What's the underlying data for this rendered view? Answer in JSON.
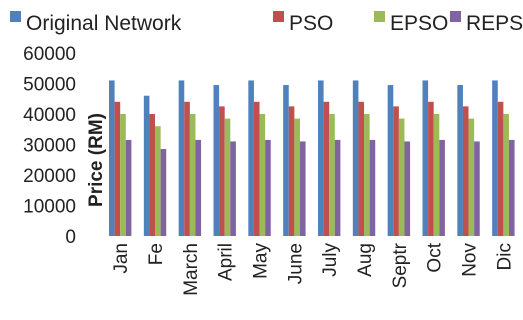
{
  "chart_data": {
    "type": "bar",
    "title": "",
    "xlabel": "",
    "ylabel": "Price (RM)",
    "ylim": [
      0,
      60000
    ],
    "yticks": [
      0,
      10000,
      20000,
      30000,
      40000,
      50000,
      60000
    ],
    "grid": false,
    "legend_position": "top",
    "categories": [
      "Jan",
      "Fe",
      "March",
      "April",
      "May",
      "June",
      "July",
      "Aug",
      "Septr",
      "Oct",
      "Nov",
      "Dic"
    ],
    "series": [
      {
        "name": "Original Network",
        "color": "#4F81BD",
        "values": [
          51000,
          46000,
          51000,
          49500,
          51000,
          49500,
          51000,
          51000,
          49500,
          51000,
          49500,
          51000
        ]
      },
      {
        "name": "PSO",
        "color": "#C0504D",
        "values": [
          44000,
          40000,
          44000,
          42500,
          44000,
          42500,
          44000,
          44000,
          42500,
          44000,
          42500,
          44000
        ]
      },
      {
        "name": "EPSO",
        "color": "#9BBB59",
        "values": [
          40000,
          36000,
          40000,
          38500,
          40000,
          38500,
          40000,
          40000,
          38500,
          40000,
          38500,
          40000
        ]
      },
      {
        "name": "REPSO",
        "color": "#8064A2",
        "values": [
          31500,
          28500,
          31500,
          31000,
          31500,
          31000,
          31500,
          31500,
          31000,
          31500,
          31000,
          31500
        ]
      }
    ]
  }
}
